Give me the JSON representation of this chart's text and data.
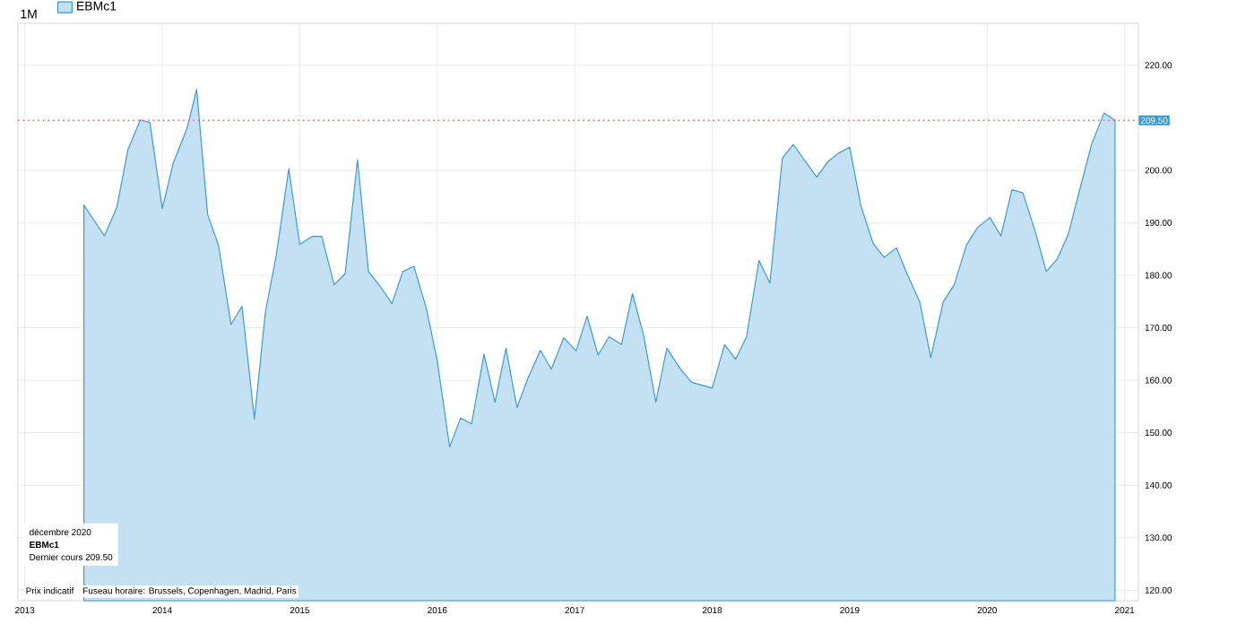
{
  "chart_data": {
    "type": "area",
    "x": [
      2013.43,
      2013.51,
      2013.58,
      2013.67,
      2013.75,
      2013.84,
      2013.91,
      2014.0,
      2014.08,
      2014.18,
      2014.25,
      2014.33,
      2014.41,
      2014.5,
      2014.58,
      2014.67,
      2014.75,
      2014.83,
      2014.92,
      2015.0,
      2015.09,
      2015.16,
      2015.25,
      2015.33,
      2015.42,
      2015.5,
      2015.59,
      2015.67,
      2015.75,
      2015.83,
      2015.92,
      2016.0,
      2016.09,
      2016.17,
      2016.25,
      2016.34,
      2016.42,
      2016.5,
      2016.58,
      2016.66,
      2016.75,
      2016.83,
      2016.92,
      2017.01,
      2017.09,
      2017.17,
      2017.25,
      2017.34,
      2017.42,
      2017.5,
      2017.59,
      2017.67,
      2017.77,
      2017.85,
      2018.0,
      2018.09,
      2018.17,
      2018.25,
      2018.34,
      2018.42,
      2018.51,
      2018.59,
      2018.76,
      2018.84,
      2018.92,
      2019.0,
      2019.08,
      2019.17,
      2019.25,
      2019.34,
      2019.42,
      2019.51,
      2019.59,
      2019.68,
      2019.76,
      2019.85,
      2019.93,
      2020.02,
      2020.1,
      2020.18,
      2020.26,
      2020.35,
      2020.43,
      2020.51,
      2020.59,
      2020.68,
      2020.76,
      2020.85,
      2020.93
    ],
    "series": [
      {
        "name": "EBMc1",
        "color": "#3a9ad9",
        "values": [
          193.4,
          190.2,
          187.5,
          193.0,
          203.9,
          209.6,
          209.1,
          192.7,
          201.4,
          208.0,
          215.4,
          191.6,
          185.6,
          170.6,
          174.1,
          152.6,
          173.0,
          183.9,
          200.3,
          185.9,
          187.4,
          187.4,
          178.2,
          180.3,
          202.0,
          180.7,
          177.7,
          174.6,
          180.7,
          181.7,
          173.8,
          163.7,
          147.3,
          152.8,
          151.7,
          165.0,
          155.8,
          166.1,
          154.8,
          160.4,
          165.7,
          162.1,
          168.1,
          165.6,
          172.2,
          164.8,
          168.3,
          166.8,
          176.5,
          168.7,
          155.8,
          166.1,
          162.1,
          159.6,
          158.5,
          166.8,
          164.0,
          168.3,
          182.8,
          178.5,
          202.3,
          204.9,
          198.7,
          201.6,
          203.3,
          204.4,
          193.4,
          186.1,
          183.4,
          185.2,
          180.1,
          174.9,
          164.3,
          174.9,
          178.2,
          185.8,
          189.1,
          191.0,
          187.5,
          196.3,
          195.7,
          188.3,
          180.7,
          183.1,
          187.8,
          197.0,
          205.0,
          210.9,
          209.5
        ]
      }
    ],
    "xlim": [
      2012.95,
      2021.1
    ],
    "xticks": [
      2013,
      2014,
      2015,
      2016,
      2017,
      2018,
      2019,
      2020,
      2021
    ],
    "ylim": [
      118,
      228
    ],
    "yticks": [
      {
        "value": 120,
        "label": "120.00"
      },
      {
        "value": 130,
        "label": "130.00"
      },
      {
        "value": 140,
        "label": "140.00"
      },
      {
        "value": 150,
        "label": "150.00"
      },
      {
        "value": 160,
        "label": "160.00"
      },
      {
        "value": 170,
        "label": "170.00"
      },
      {
        "value": 180,
        "label": "180.00"
      },
      {
        "value": 190,
        "label": "190.00"
      },
      {
        "value": 200,
        "label": "200.00"
      },
      {
        "value": 220,
        "label": "220.00"
      }
    ],
    "ref_lines": [
      {
        "axis": "y",
        "value": 209.5,
        "label": "209.50",
        "color": "#e06666",
        "line_style": "dotted"
      }
    ],
    "grid": true,
    "legend": "top left",
    "annotations": [
      "1M",
      "décembre 2020",
      "EBMc1",
      "Dernier cours 209.50",
      "Prix indicatif",
      "Fuseau horaire: Brussels, Copenhagen, Madrid, Paris"
    ]
  }
}
